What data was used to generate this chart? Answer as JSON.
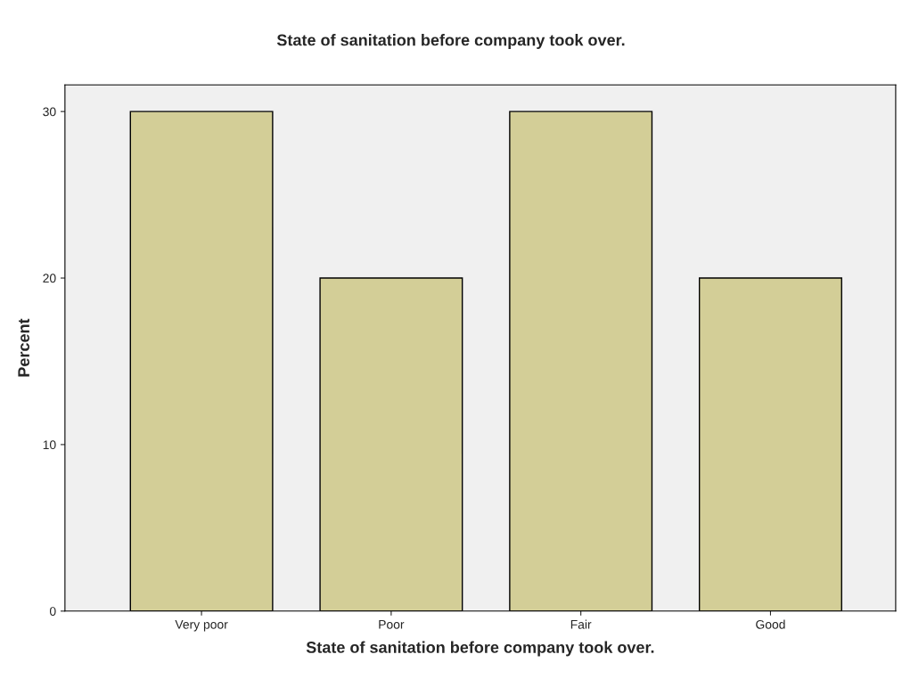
{
  "chart_data": {
    "type": "bar",
    "title": "State of sanitation before company took over.",
    "xlabel": "State of sanitation before company took over.",
    "ylabel": "Percent",
    "categories": [
      "Very poor",
      "Poor",
      "Fair",
      "Good"
    ],
    "values": [
      30,
      20,
      30,
      20
    ],
    "color": "#d3ce97",
    "ylim": [
      0,
      31.6
    ],
    "yticks": [
      0,
      10,
      20,
      30
    ],
    "grid": false
  }
}
